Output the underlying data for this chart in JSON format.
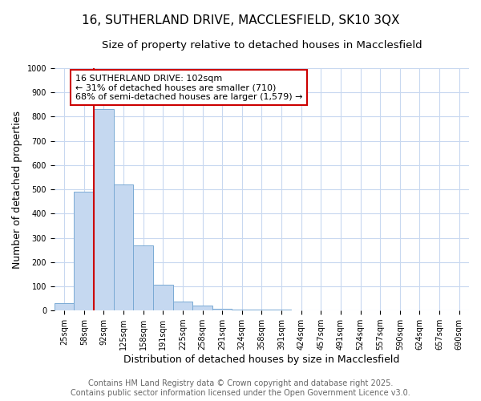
{
  "title_line1": "16, SUTHERLAND DRIVE, MACCLESFIELD, SK10 3QX",
  "title_line2": "Size of property relative to detached houses in Macclesfield",
  "xlabel": "Distribution of detached houses by size in Macclesfield",
  "ylabel": "Number of detached properties",
  "categories": [
    "25sqm",
    "58sqm",
    "92sqm",
    "125sqm",
    "158sqm",
    "191sqm",
    "225sqm",
    "258sqm",
    "291sqm",
    "324sqm",
    "358sqm",
    "391sqm",
    "424sqm",
    "457sqm",
    "491sqm",
    "524sqm",
    "557sqm",
    "590sqm",
    "624sqm",
    "657sqm",
    "690sqm"
  ],
  "values": [
    32,
    490,
    830,
    520,
    270,
    107,
    38,
    20,
    8,
    5,
    5,
    5,
    0,
    0,
    0,
    0,
    0,
    0,
    0,
    0,
    0
  ],
  "bar_color": "#c5d8f0",
  "bar_edge_color": "#7aaad4",
  "vline_color": "#cc0000",
  "annotation_text": "16 SUTHERLAND DRIVE: 102sqm\n← 31% of detached houses are smaller (710)\n68% of semi-detached houses are larger (1,579) →",
  "annotation_box_color": "#ffffff",
  "annotation_box_edge": "#cc0000",
  "ylim": [
    0,
    1000
  ],
  "yticks": [
    0,
    100,
    200,
    300,
    400,
    500,
    600,
    700,
    800,
    900,
    1000
  ],
  "footer_line1": "Contains HM Land Registry data © Crown copyright and database right 2025.",
  "footer_line2": "Contains public sector information licensed under the Open Government Licence v3.0.",
  "bg_color": "#ffffff",
  "grid_color": "#c8d8f0",
  "title_fontsize": 11,
  "subtitle_fontsize": 9.5,
  "axis_label_fontsize": 9,
  "tick_fontsize": 7,
  "footer_fontsize": 7,
  "annotation_fontsize": 8
}
